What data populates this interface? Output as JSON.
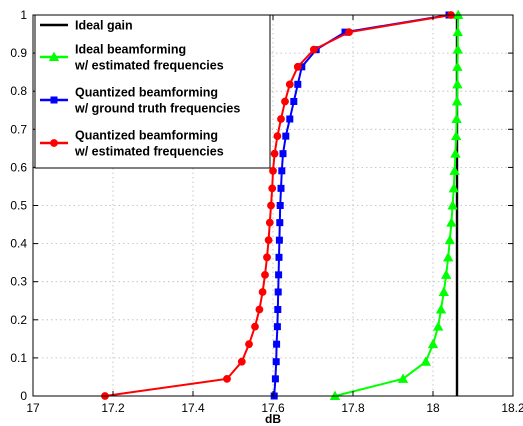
{
  "chart_data": {
    "type": "line",
    "title": "",
    "xlabel": "dB",
    "ylabel": "",
    "xlim": [
      17,
      18.2
    ],
    "ylim": [
      0,
      1
    ],
    "xticks": [
      "17",
      "17.2",
      "17.4",
      "17.6",
      "17.8",
      "18",
      "18.2"
    ],
    "yticks": [
      "0",
      "0.1",
      "0.2",
      "0.3",
      "0.4",
      "0.5",
      "0.6",
      "0.7",
      "0.8",
      "0.9",
      "1"
    ],
    "grid": true,
    "legend_position": "top-left",
    "series": [
      {
        "name": "Ideal gain",
        "color": "#000000",
        "marker": "none",
        "points": [
          [
            18.06,
            0
          ],
          [
            18.06,
            1
          ]
        ]
      },
      {
        "name": "Ideal beamforming\nw/ estimated frequencies",
        "color": "#00ff00",
        "marker": "triangle",
        "points": [
          [
            17.755,
            0
          ],
          [
            17.925,
            0.045
          ],
          [
            17.982,
            0.09
          ],
          [
            18.0,
            0.136
          ],
          [
            18.013,
            0.182
          ],
          [
            18.02,
            0.227
          ],
          [
            18.027,
            0.273
          ],
          [
            18.033,
            0.318
          ],
          [
            18.038,
            0.364
          ],
          [
            18.042,
            0.409
          ],
          [
            18.046,
            0.455
          ],
          [
            18.049,
            0.5
          ],
          [
            18.052,
            0.545
          ],
          [
            18.054,
            0.591
          ],
          [
            18.056,
            0.636
          ],
          [
            18.058,
            0.682
          ],
          [
            18.059,
            0.727
          ],
          [
            18.06,
            0.773
          ],
          [
            18.061,
            0.818
          ],
          [
            18.061,
            0.864
          ],
          [
            18.062,
            0.909
          ],
          [
            18.062,
            0.955
          ],
          [
            18.063,
            1
          ]
        ]
      },
      {
        "name": "Quantized beamforming\nw/ ground truth frequencies",
        "color": "#0000ff",
        "marker": "square",
        "points": [
          [
            17.603,
            0
          ],
          [
            17.606,
            0.045
          ],
          [
            17.608,
            0.09
          ],
          [
            17.609,
            0.136
          ],
          [
            17.611,
            0.182
          ],
          [
            17.612,
            0.227
          ],
          [
            17.613,
            0.273
          ],
          [
            17.614,
            0.318
          ],
          [
            17.615,
            0.364
          ],
          [
            17.616,
            0.409
          ],
          [
            17.617,
            0.455
          ],
          [
            17.618,
            0.5
          ],
          [
            17.62,
            0.545
          ],
          [
            17.622,
            0.591
          ],
          [
            17.625,
            0.636
          ],
          [
            17.632,
            0.682
          ],
          [
            17.642,
            0.727
          ],
          [
            17.652,
            0.773
          ],
          [
            17.662,
            0.818
          ],
          [
            17.672,
            0.864
          ],
          [
            17.708,
            0.909
          ],
          [
            17.78,
            0.955
          ],
          [
            18.04,
            1
          ]
        ]
      },
      {
        "name": "Quantized beamforming\nw/ estimated frequencies",
        "color": "#ff0000",
        "marker": "circle",
        "points": [
          [
            17.18,
            0
          ],
          [
            17.485,
            0.045
          ],
          [
            17.522,
            0.09
          ],
          [
            17.54,
            0.136
          ],
          [
            17.555,
            0.182
          ],
          [
            17.566,
            0.227
          ],
          [
            17.574,
            0.273
          ],
          [
            17.58,
            0.318
          ],
          [
            17.585,
            0.364
          ],
          [
            17.589,
            0.409
          ],
          [
            17.592,
            0.455
          ],
          [
            17.595,
            0.5
          ],
          [
            17.598,
            0.545
          ],
          [
            17.6,
            0.591
          ],
          [
            17.604,
            0.636
          ],
          [
            17.611,
            0.682
          ],
          [
            17.62,
            0.727
          ],
          [
            17.63,
            0.773
          ],
          [
            17.642,
            0.818
          ],
          [
            17.662,
            0.864
          ],
          [
            17.702,
            0.909
          ],
          [
            17.79,
            0.955
          ],
          [
            18.045,
            1
          ]
        ]
      }
    ]
  }
}
